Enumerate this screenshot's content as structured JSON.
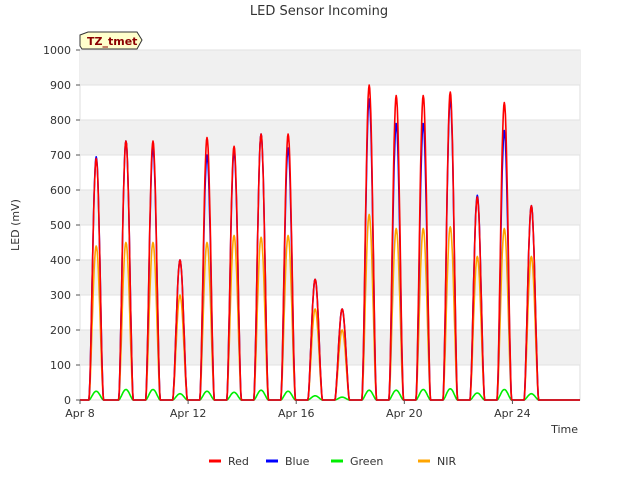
{
  "chart_data": {
    "type": "line",
    "title": "LED Sensor Incoming",
    "xlabel": "Time",
    "ylabel": "LED (mV)",
    "badge": "TZ_tmet",
    "ylim": [
      0,
      1000
    ],
    "xlim_days": [
      8,
      26.5
    ],
    "yticks": [
      0,
      100,
      200,
      300,
      400,
      500,
      600,
      700,
      800,
      900,
      1000
    ],
    "xticks": [
      {
        "day": 8,
        "label": "Apr 8"
      },
      {
        "day": 12,
        "label": "Apr 12"
      },
      {
        "day": 16,
        "label": "Apr 16"
      },
      {
        "day": 20,
        "label": "Apr 20"
      },
      {
        "day": 24,
        "label": "Apr 24"
      }
    ],
    "days": [
      8.6,
      9.7,
      10.7,
      11.7,
      12.7,
      13.7,
      14.7,
      15.7,
      16.7,
      17.7,
      18.7,
      19.7,
      20.7,
      21.7,
      22.7,
      23.7,
      24.7
    ],
    "series": [
      {
        "name": "Red",
        "color": "#ff0000",
        "peaks": [
          690,
          740,
          740,
          400,
          750,
          725,
          760,
          760,
          345,
          260,
          900,
          870,
          870,
          880,
          580,
          850,
          555
        ]
      },
      {
        "name": "Blue",
        "color": "#0000ff",
        "peaks": [
          695,
          740,
          720,
          400,
          700,
          710,
          760,
          720,
          345,
          260,
          860,
          790,
          790,
          860,
          585,
          770,
          555
        ]
      },
      {
        "name": "Green",
        "color": "#00ee00",
        "peaks": [
          25,
          30,
          30,
          18,
          25,
          22,
          28,
          25,
          12,
          8,
          28,
          28,
          30,
          32,
          20,
          30,
          18
        ]
      },
      {
        "name": "NIR",
        "color": "#ffa500",
        "peaks": [
          440,
          450,
          450,
          300,
          450,
          470,
          465,
          470,
          260,
          200,
          530,
          490,
          490,
          495,
          410,
          490,
          410
        ]
      }
    ]
  }
}
